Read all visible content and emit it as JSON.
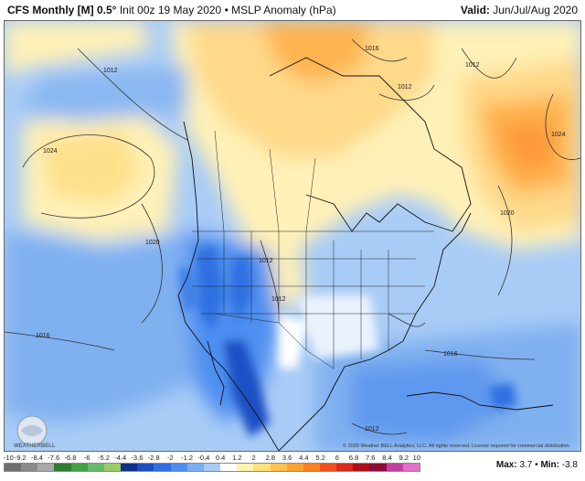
{
  "header": {
    "model": "CFS Monthly [M] 0.5°",
    "init": "Init 00z 19 May 2020",
    "separator": "•",
    "field": "MSLP Anomaly (hPa)",
    "valid_label": "Valid:",
    "valid_value": "Jun/Jul/Aug 2020"
  },
  "map": {
    "isobar_labels": [
      "1012",
      "1016",
      "1012",
      "1012",
      "1024",
      "1024",
      "1020",
      "1020",
      "1012",
      "1012",
      "1016",
      "1016",
      "1012"
    ],
    "copyright": "© 2020 Weather BELL Analytics, LLC. All rights reserved. License required for commercial distribution.",
    "logo_text": "WEATHERBELL"
  },
  "legend": {
    "ticks": [
      "-10",
      "-9.2",
      "-8.4",
      "-7.6",
      "-6.8",
      "-6",
      "-5.2",
      "-4.4",
      "-3.6",
      "-2.8",
      "-2",
      "-1.2",
      "-0.4",
      "0.4",
      "1.2",
      "2",
      "2.8",
      "3.6",
      "4.4",
      "5.2",
      "6",
      "6.8",
      "7.6",
      "8.4",
      "9.2",
      "10"
    ],
    "colors": [
      "#6e6e6e",
      "#8a8a8a",
      "#a8a8a8",
      "#2e7d32",
      "#43a047",
      "#66bb6a",
      "#9ccc65",
      "#0d2f8c",
      "#1a4fc4",
      "#2f6fe0",
      "#4d8ef0",
      "#78aef5",
      "#a8ccf8",
      "#ffffff",
      "#fff3b0",
      "#ffe07a",
      "#ffc24d",
      "#ffa033",
      "#ff7f1f",
      "#f2501a",
      "#d62a1a",
      "#b0101a",
      "#8c0a3a",
      "#c040a0",
      "#e070c8"
    ],
    "max_label": "Max:",
    "max_value": "3.7",
    "min_label": "Min:",
    "min_value": "-3.8",
    "separator": "•"
  }
}
